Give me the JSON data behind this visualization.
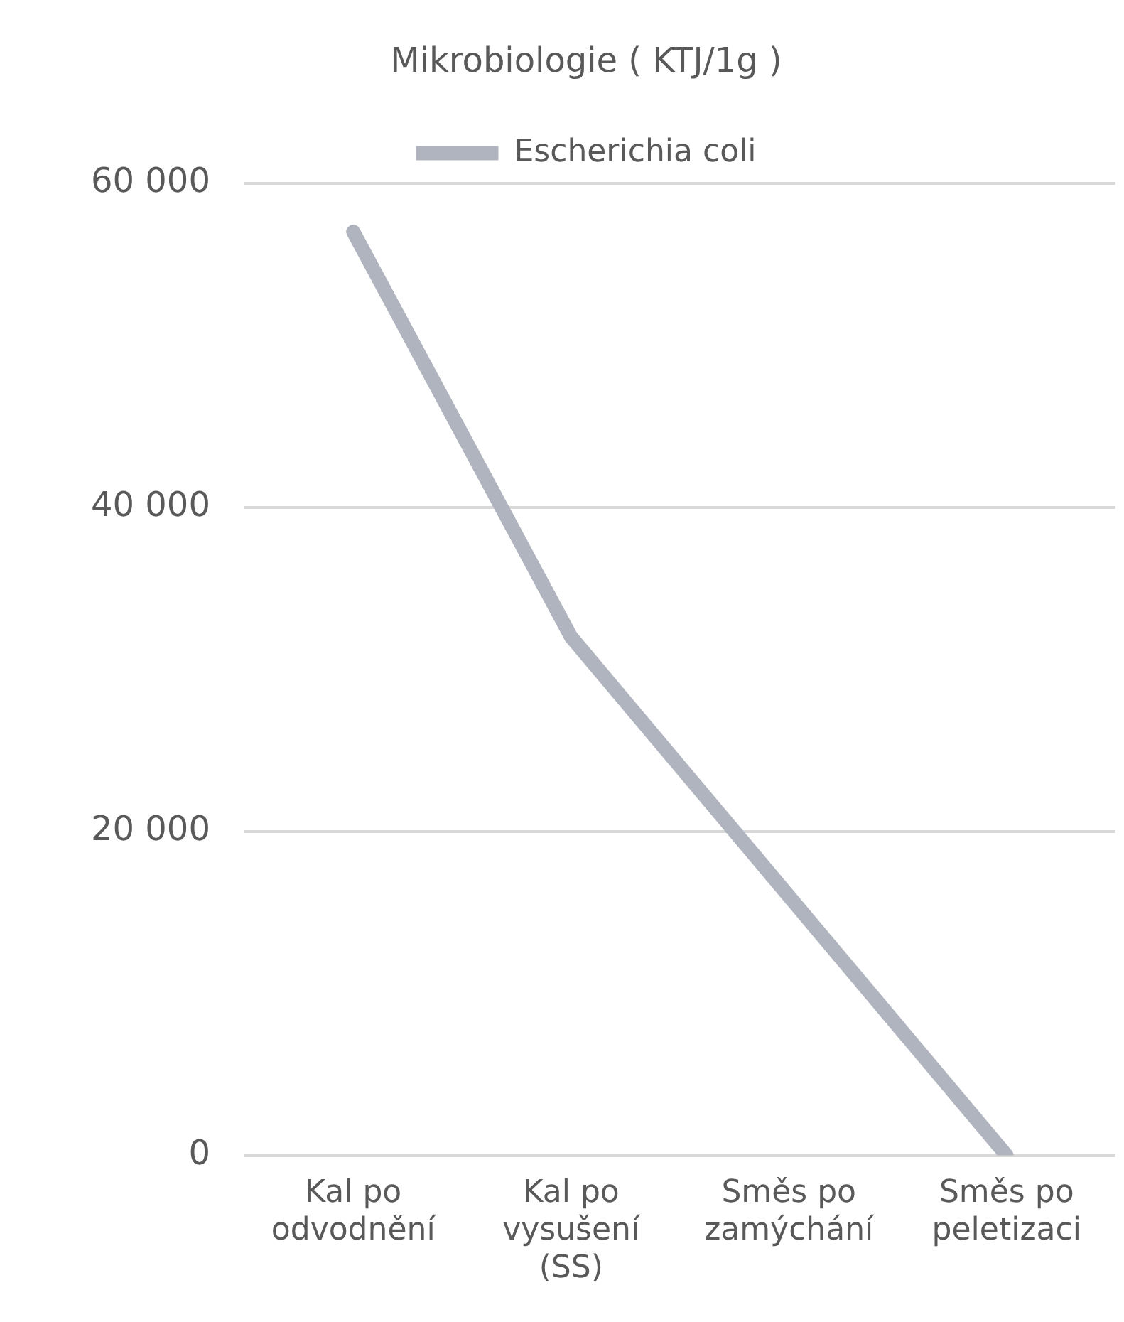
{
  "chart_data": {
    "type": "line",
    "title": "Mikrobiologie ( KTJ/1g )",
    "categories": [
      [
        "Kal po",
        "odvodnění"
      ],
      [
        "Kal po",
        "vysušení",
        "(SS)"
      ],
      [
        "Směs po",
        "zamýchání"
      ],
      [
        "Směs po",
        "peletizaci"
      ]
    ],
    "series": [
      {
        "name": "Escherichia coli",
        "color": "#b0b4be",
        "values": [
          57000,
          32000,
          16000,
          0
        ]
      }
    ],
    "ylim": [
      0,
      60000
    ],
    "yticks": [
      {
        "value": 0,
        "label": "0"
      },
      {
        "value": 20000,
        "label": "20 000"
      },
      {
        "value": 40000,
        "label": "40 000"
      },
      {
        "value": 60000,
        "label": "60 000"
      }
    ],
    "grid": "y",
    "legend": "top",
    "marker": "none",
    "line_style": "solid"
  }
}
